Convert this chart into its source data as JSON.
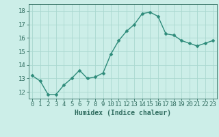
{
  "x": [
    0,
    1,
    2,
    3,
    4,
    5,
    6,
    7,
    8,
    9,
    10,
    11,
    12,
    13,
    14,
    15,
    16,
    17,
    18,
    19,
    20,
    21,
    22,
    23
  ],
  "y": [
    13.2,
    12.8,
    11.8,
    11.8,
    12.5,
    13.0,
    13.6,
    13.0,
    13.1,
    13.4,
    14.8,
    15.8,
    16.5,
    17.0,
    17.8,
    17.9,
    17.6,
    16.3,
    16.2,
    15.8,
    15.6,
    15.4,
    15.6,
    15.8
  ],
  "line_color": "#2e8b7a",
  "marker_color": "#2e8b7a",
  "bg_color": "#cceee8",
  "grid_color": "#aad8d0",
  "axis_color": "#2e6b5e",
  "xlabel": "Humidex (Indice chaleur)",
  "ylim": [
    11.5,
    18.5
  ],
  "xlim": [
    -0.5,
    23.5
  ],
  "yticks": [
    12,
    13,
    14,
    15,
    16,
    17,
    18
  ],
  "xticks": [
    0,
    1,
    2,
    3,
    4,
    5,
    6,
    7,
    8,
    9,
    10,
    11,
    12,
    13,
    14,
    15,
    16,
    17,
    18,
    19,
    20,
    21,
    22,
    23
  ],
  "xlabel_fontsize": 7,
  "tick_fontsize": 6.5,
  "line_width": 1.0,
  "marker_size": 2.5
}
